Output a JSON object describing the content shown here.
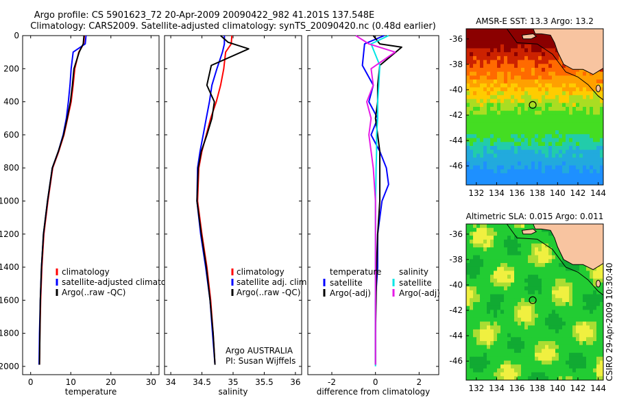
{
  "header": {
    "line1": "Argo profile: CS 5901623_72 20-Apr-2009 20090422_982 41.201S 137.548E",
    "line2": "Climatology: CARS2009. Satellite-adjusted climatology: synTS_20090420.nc (0.48d earlier)"
  },
  "vertical_note": "CSIRO 29-Apr-2009 10:30:40",
  "chart_data": [
    {
      "type": "line",
      "panel": "temperature",
      "xlabel": "temperature",
      "xlim": [
        -2,
        32
      ],
      "xticks": [
        0,
        10,
        20,
        30
      ],
      "ylim": [
        0,
        2050
      ],
      "yticks": [
        0,
        200,
        400,
        600,
        800,
        1000,
        1200,
        1400,
        1600,
        1800,
        2000
      ],
      "y_reversed": true,
      "legend": [
        "climatology",
        "satellite-adjusted climatolog",
        "Argo(..raw -QC)"
      ],
      "series": [
        {
          "name": "climatology",
          "color": "#ff0000",
          "x": [
            13.4,
            13.2,
            12.0,
            11.0,
            10.6,
            10.1,
            9.2,
            8.3,
            7.0,
            5.5,
            4.3,
            3.3,
            2.8,
            2.5,
            2.3,
            2.2
          ],
          "y": [
            0,
            50,
            100,
            200,
            300,
            400,
            500,
            600,
            700,
            800,
            1000,
            1200,
            1400,
            1600,
            1800,
            1990
          ]
        },
        {
          "name": "satellite-adjusted climatolog",
          "color": "#0000ff",
          "x": [
            13.8,
            13.6,
            10.6,
            10.1,
            9.8,
            9.4,
            8.9,
            8.1,
            6.9,
            5.4,
            4.2,
            3.2,
            2.7,
            2.4,
            2.2,
            2.1
          ],
          "y": [
            0,
            50,
            100,
            200,
            300,
            400,
            500,
            600,
            700,
            800,
            1000,
            1200,
            1400,
            1600,
            1800,
            1990
          ]
        },
        {
          "name": "Argo(..raw -QC)",
          "color": "#000000",
          "x": [
            13.3,
            13.1,
            12.1,
            10.8,
            10.4,
            9.9,
            9.1,
            8.2,
            6.9,
            5.4,
            4.2,
            3.2,
            2.7,
            2.4,
            2.3,
            2.2
          ],
          "y": [
            0,
            50,
            100,
            200,
            300,
            400,
            500,
            600,
            700,
            800,
            1000,
            1200,
            1400,
            1600,
            1800,
            1990
          ]
        }
      ]
    },
    {
      "type": "line",
      "panel": "salinity",
      "xlabel": "salinity",
      "xlim": [
        33.9,
        36.1
      ],
      "xticks": [
        34,
        34.5,
        35,
        35.5,
        36
      ],
      "ylim": [
        0,
        2050
      ],
      "y_reversed": true,
      "legend": [
        "climatology",
        "satellite adj. clim.",
        "Argo(..raw -QC)"
      ],
      "annotations": [
        "Argo AUSTRALIA",
        "PI: Susan Wijffels"
      ],
      "series": [
        {
          "name": "climatology",
          "color": "#ff0000",
          "x": [
            34.98,
            34.97,
            34.88,
            34.85,
            34.8,
            34.73,
            34.64,
            34.57,
            34.5,
            34.45,
            34.43,
            34.5,
            34.58,
            34.64,
            34.68,
            34.71
          ],
          "y": [
            0,
            50,
            100,
            200,
            300,
            400,
            500,
            600,
            700,
            800,
            1000,
            1200,
            1400,
            1600,
            1800,
            1990
          ]
        },
        {
          "name": "satellite adj. clim.",
          "color": "#0000ff",
          "x": [
            34.86,
            34.86,
            34.83,
            34.74,
            34.66,
            34.62,
            34.57,
            34.52,
            34.47,
            34.43,
            34.42,
            34.48,
            34.56,
            34.63,
            34.67,
            34.71
          ],
          "y": [
            0,
            50,
            100,
            200,
            300,
            400,
            500,
            600,
            700,
            800,
            1000,
            1200,
            1400,
            1600,
            1800,
            1990
          ]
        },
        {
          "name": "Argo(..raw -QC)",
          "color": "#000000",
          "x": [
            34.8,
            34.92,
            35.25,
            34.65,
            34.58,
            34.7,
            34.66,
            34.58,
            34.49,
            34.44,
            34.42,
            34.49,
            34.57,
            34.63,
            34.68,
            34.71
          ],
          "y": [
            0,
            40,
            80,
            180,
            300,
            400,
            500,
            600,
            700,
            800,
            1000,
            1200,
            1400,
            1600,
            1800,
            1990
          ]
        }
      ]
    },
    {
      "type": "line",
      "panel": "difference",
      "xlabel": "difference from climatology",
      "xlim": [
        -3.1,
        2.9
      ],
      "xticks": [
        -2,
        0,
        2
      ],
      "ylim": [
        0,
        2050
      ],
      "y_reversed": true,
      "legend_headers": [
        "temperature",
        "salinity"
      ],
      "legend": [
        "satellite",
        "Argo(-adj)",
        "satellite",
        "Argo(-adj)"
      ],
      "series": [
        {
          "name": "temperature satellite",
          "color": "#0000ff",
          "x": [
            0.4,
            -0.5,
            -0.6,
            -0.1,
            -0.3,
            0.1,
            -0.2,
            0.2,
            0.5,
            0.6,
            0.3,
            0.1,
            0.1,
            0.0,
            0.0,
            0.0
          ],
          "y": [
            0,
            50,
            180,
            300,
            400,
            500,
            600,
            700,
            800,
            900,
            1000,
            1200,
            1400,
            1600,
            1800,
            1990
          ]
        },
        {
          "name": "temperature Argo(-adj)",
          "color": "#000000",
          "x": [
            -0.1,
            0.2,
            1.2,
            0.2,
            0.1,
            0.1,
            0.0,
            0.1,
            0.2,
            0.2,
            0.2,
            0.1,
            0.05,
            0.03,
            0.0,
            0.0
          ],
          "y": [
            0,
            50,
            70,
            180,
            300,
            400,
            500,
            600,
            700,
            800,
            1000,
            1200,
            1400,
            1600,
            1800,
            1990
          ]
        },
        {
          "name": "salinity satellite",
          "color": "#00e5e5",
          "x": [
            0.6,
            -0.2,
            0.2,
            0.15,
            0.1,
            0.1,
            0.05,
            0.05,
            0.03,
            0.02,
            0.0,
            0.0,
            0.0,
            0.0,
            0.0,
            0.0
          ],
          "y": [
            0,
            50,
            180,
            300,
            400,
            500,
            600,
            700,
            800,
            900,
            1000,
            1200,
            1400,
            1600,
            1800,
            2000
          ]
        },
        {
          "name": "salinity Argo(-adj)",
          "color": "#e61ae6",
          "x": [
            -0.9,
            -0.3,
            0.9,
            -0.2,
            -0.1,
            -0.4,
            -0.2,
            -0.3,
            -0.2,
            -0.1,
            0.0,
            0.0,
            0.0,
            0.0,
            0.0,
            0.0
          ],
          "y": [
            0,
            50,
            100,
            200,
            300,
            400,
            500,
            600,
            700,
            800,
            1000,
            1200,
            1400,
            1600,
            1800,
            1990
          ]
        }
      ]
    },
    {
      "type": "heatmap",
      "panel": "sst-map",
      "title": "AMSR-E SST: 13.3 Argo: 13.2",
      "xlim": [
        131,
        144.5
      ],
      "ylim": [
        -47.5,
        -35.2
      ],
      "xticks": [
        132,
        134,
        136,
        138,
        140,
        142,
        144
      ],
      "yticks": [
        -36,
        -38,
        -40,
        -42,
        -44,
        -46
      ],
      "marker": {
        "lon": 137.55,
        "lat": -41.2
      },
      "colors": {
        "hot": "#8b0000",
        "warm": "#ff6a00",
        "mid": "#ffcc00",
        "cool": "#44dd22",
        "cold": "#1e90ff",
        "land": "#f8c4a0"
      }
    },
    {
      "type": "heatmap",
      "panel": "sla-map",
      "title": "Altimetric SLA: 0.015 Argo: 0.011",
      "xlim": [
        131,
        144.5
      ],
      "ylim": [
        -47.5,
        -35.2
      ],
      "xticks": [
        132,
        134,
        136,
        138,
        140,
        142,
        144
      ],
      "yticks": [
        -36,
        -38,
        -40,
        -42,
        -44,
        -46
      ],
      "marker": {
        "lon": 137.55,
        "lat": -41.2
      },
      "colors": {
        "green": "#22cc33",
        "yellowgreen": "#aadd33",
        "yellow": "#f0f040",
        "land": "#f8c4a0"
      }
    }
  ]
}
